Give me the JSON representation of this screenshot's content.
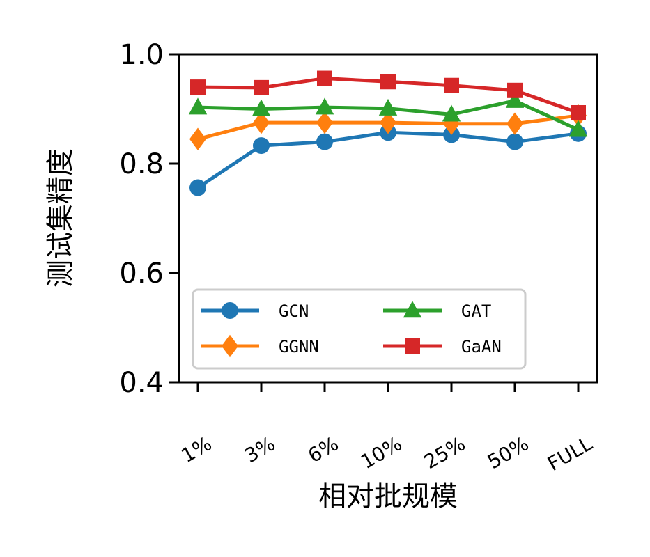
{
  "chart_data": {
    "type": "line",
    "xlabel": "相对批规模",
    "ylabel": "测试集精度",
    "categories": [
      "1%",
      "3%",
      "6%",
      "10%",
      "25%",
      "50%",
      "FULL"
    ],
    "ylim": [
      0.4,
      1.0
    ],
    "yticks": [
      "0.4",
      "0.6",
      "0.8",
      "1.0"
    ],
    "grid": false,
    "legend_position": "lower-left",
    "series": [
      {
        "name": "GCN",
        "color": "#1f77b4",
        "marker": "circle",
        "values": [
          0.756,
          0.833,
          0.84,
          0.857,
          0.853,
          0.84,
          0.855
        ]
      },
      {
        "name": "GGNN",
        "color": "#ff7f0e",
        "marker": "diamond",
        "values": [
          0.845,
          0.875,
          0.875,
          0.875,
          0.873,
          0.873,
          0.888
        ]
      },
      {
        "name": "GAT",
        "color": "#2ca02c",
        "marker": "triangle",
        "values": [
          0.903,
          0.9,
          0.903,
          0.901,
          0.89,
          0.915,
          0.862
        ]
      },
      {
        "name": "GaAN",
        "color": "#d62728",
        "marker": "square",
        "values": [
          0.94,
          0.939,
          0.956,
          0.95,
          0.943,
          0.934,
          0.893
        ]
      }
    ]
  }
}
